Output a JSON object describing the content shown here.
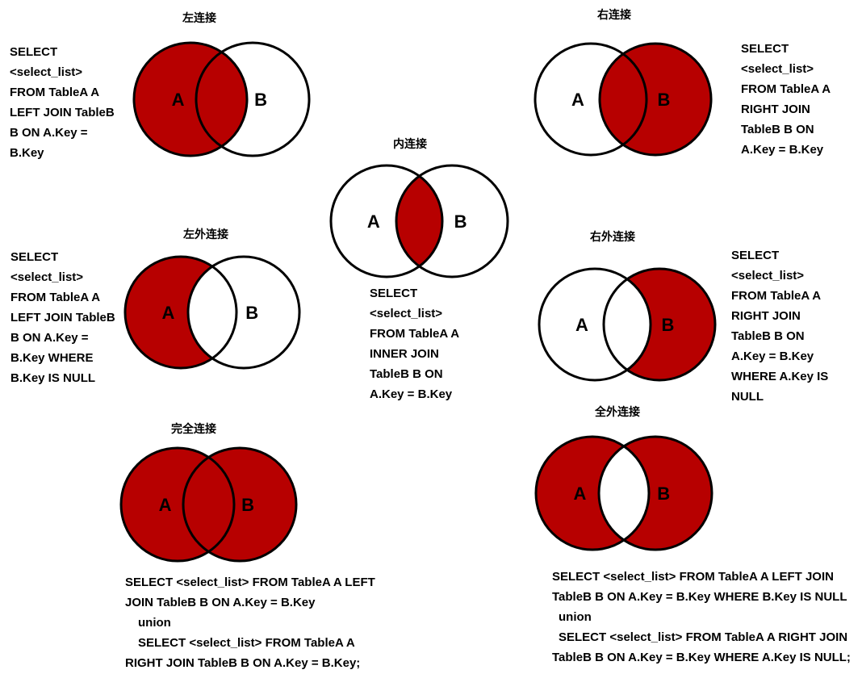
{
  "colors": {
    "fill": "#b70000",
    "stroke": "#000000",
    "background": "#ffffff"
  },
  "diagrams": [
    {
      "id": "left-join",
      "title": "左连接",
      "label_a": "A",
      "label_b": "B",
      "fill": "left",
      "sql": [
        "SELECT",
        "<select_list>",
        "FROM TableA A",
        "LEFT JOIN TableB",
        "B ON A.Key =",
        "B.Key"
      ]
    },
    {
      "id": "right-join",
      "title": "右连接",
      "label_a": "A",
      "label_b": "B",
      "fill": "right",
      "sql": [
        "SELECT",
        "<select_list>",
        "FROM TableA A",
        "RIGHT JOIN",
        "TableB B ON",
        "A.Key = B.Key"
      ]
    },
    {
      "id": "inner-join",
      "title": "内连接",
      "label_a": "A",
      "label_b": "B",
      "fill": "inner",
      "sql": [
        "SELECT",
        "<select_list>",
        "FROM TableA A",
        "INNER JOIN",
        "TableB B ON",
        "A.Key = B.Key"
      ]
    },
    {
      "id": "left-outer-join",
      "title": "左外连接",
      "label_a": "A",
      "label_b": "B",
      "fill": "left-only",
      "sql": [
        "SELECT",
        "<select_list>",
        "FROM TableA A",
        "LEFT JOIN TableB",
        "B ON A.Key =",
        "B.Key WHERE",
        "B.Key IS NULL"
      ]
    },
    {
      "id": "right-outer-join",
      "title": "右外连接",
      "label_a": "A",
      "label_b": "B",
      "fill": "right-only",
      "sql": [
        "SELECT",
        "<select_list>",
        "FROM TableA A",
        "RIGHT JOIN",
        "TableB B ON",
        "A.Key = B.Key",
        "WHERE A.Key IS",
        "NULL"
      ]
    },
    {
      "id": "full-join",
      "title": "完全连接",
      "label_a": "A",
      "label_b": "B",
      "fill": "full",
      "sql": [
        "SELECT <select_list> FROM TableA A LEFT",
        "JOIN TableB B ON A.Key = B.Key",
        "union",
        "SELECT <select_list> FROM TableA A",
        "RIGHT JOIN TableB B ON A.Key = B.Key;"
      ]
    },
    {
      "id": "full-outer-join",
      "title": "全外连接",
      "label_a": "A",
      "label_b": "B",
      "fill": "outer-only",
      "sql": [
        "SELECT <select_list> FROM TableA A LEFT JOIN",
        "TableB B ON A.Key = B.Key WHERE B.Key IS NULL",
        "union",
        "SELECT <select_list> FROM TableA A RIGHT JOIN",
        "TableB B ON A.Key = B.Key WHERE A.Key IS NULL;"
      ]
    }
  ]
}
